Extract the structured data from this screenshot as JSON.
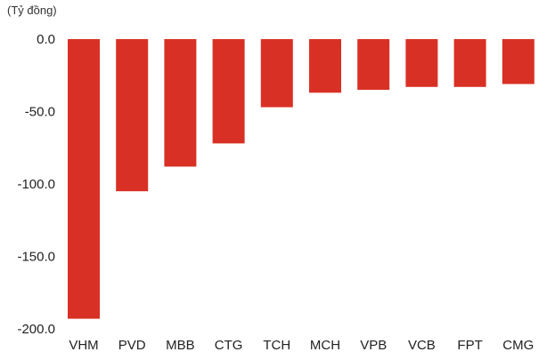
{
  "chart_data": {
    "type": "bar",
    "unit_label": "(Tỷ đồng)",
    "categories": [
      "VHM",
      "PVD",
      "MBB",
      "CTG",
      "TCH",
      "MCH",
      "VPB",
      "VCB",
      "FPT",
      "CMG"
    ],
    "values": [
      -193,
      -105,
      -88,
      -72,
      -47,
      -37,
      -35,
      -33,
      -33,
      -31
    ],
    "y_ticks": [
      "0.0",
      "-50.0",
      "-100.0",
      "-150.0",
      "-200.0"
    ],
    "ylim": [
      -200,
      0
    ],
    "grid": false,
    "legend": "none",
    "bar_color": "#d93025"
  }
}
